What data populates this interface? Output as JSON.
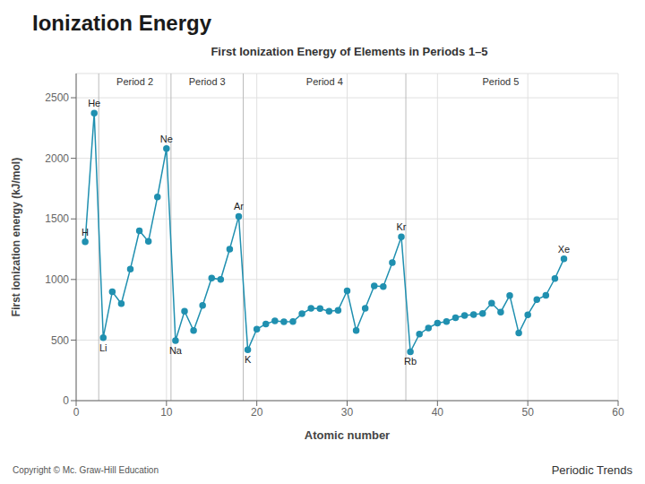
{
  "chart_data": {
    "type": "line",
    "title": "Ionization Energy",
    "subtitle": "First Ionization Energy of Elements in Periods 1–5",
    "x_label": "Atomic number",
    "y_label": "First ionization energy (kJ/mol)",
    "footer_left": "Copyright © Mc. Graw-Hill Education",
    "footer_right": "Periodic Trends",
    "color": "#2090b0",
    "marker": "circle",
    "grid": true,
    "xlim": [
      0,
      60
    ],
    "ylim": [
      0,
      2700
    ],
    "xticks": [
      0,
      10,
      20,
      30,
      40,
      50,
      60
    ],
    "yticks": [
      0,
      500,
      1000,
      1500,
      2000,
      2500
    ],
    "dividers": [
      2.5,
      10.5,
      18.5,
      36.5
    ],
    "period_labels": [
      {
        "text": "Period 2",
        "x": 6.5
      },
      {
        "text": "Period 3",
        "x": 14.5
      },
      {
        "text": "Period 4",
        "x": 27.5
      },
      {
        "text": "Period 5",
        "x": 47.0
      }
    ],
    "annotations": [
      {
        "text": "H",
        "x": 1,
        "y": 1312
      },
      {
        "text": "He",
        "x": 2,
        "y": 2372
      },
      {
        "text": "Li",
        "x": 3,
        "y": 520
      },
      {
        "text": "Ne",
        "x": 10,
        "y": 2081
      },
      {
        "text": "Na",
        "x": 11,
        "y": 496
      },
      {
        "text": "Ar",
        "x": 18,
        "y": 1521
      },
      {
        "text": "K",
        "x": 19,
        "y": 419
      },
      {
        "text": "Kr",
        "x": 36,
        "y": 1351
      },
      {
        "text": "Rb",
        "x": 37,
        "y": 403
      },
      {
        "text": "Xe",
        "x": 54,
        "y": 1170
      }
    ],
    "x": [
      1,
      2,
      3,
      4,
      5,
      6,
      7,
      8,
      9,
      10,
      11,
      12,
      13,
      14,
      15,
      16,
      17,
      18,
      19,
      20,
      21,
      22,
      23,
      24,
      25,
      26,
      27,
      28,
      29,
      30,
      31,
      32,
      33,
      34,
      35,
      36,
      37,
      38,
      39,
      40,
      41,
      42,
      43,
      44,
      45,
      46,
      47,
      48,
      49,
      50,
      51,
      52,
      53,
      54
    ],
    "values": [
      1312,
      2372,
      520,
      899,
      801,
      1086,
      1402,
      1314,
      1681,
      2081,
      496,
      738,
      578,
      786,
      1012,
      1000,
      1251,
      1521,
      419,
      590,
      633,
      659,
      651,
      653,
      717,
      762,
      760,
      737,
      746,
      906,
      579,
      762,
      947,
      941,
      1140,
      1351,
      403,
      550,
      600,
      640,
      652,
      684,
      702,
      710,
      720,
      804,
      731,
      868,
      558,
      709,
      834,
      869,
      1008,
      1170
    ]
  }
}
